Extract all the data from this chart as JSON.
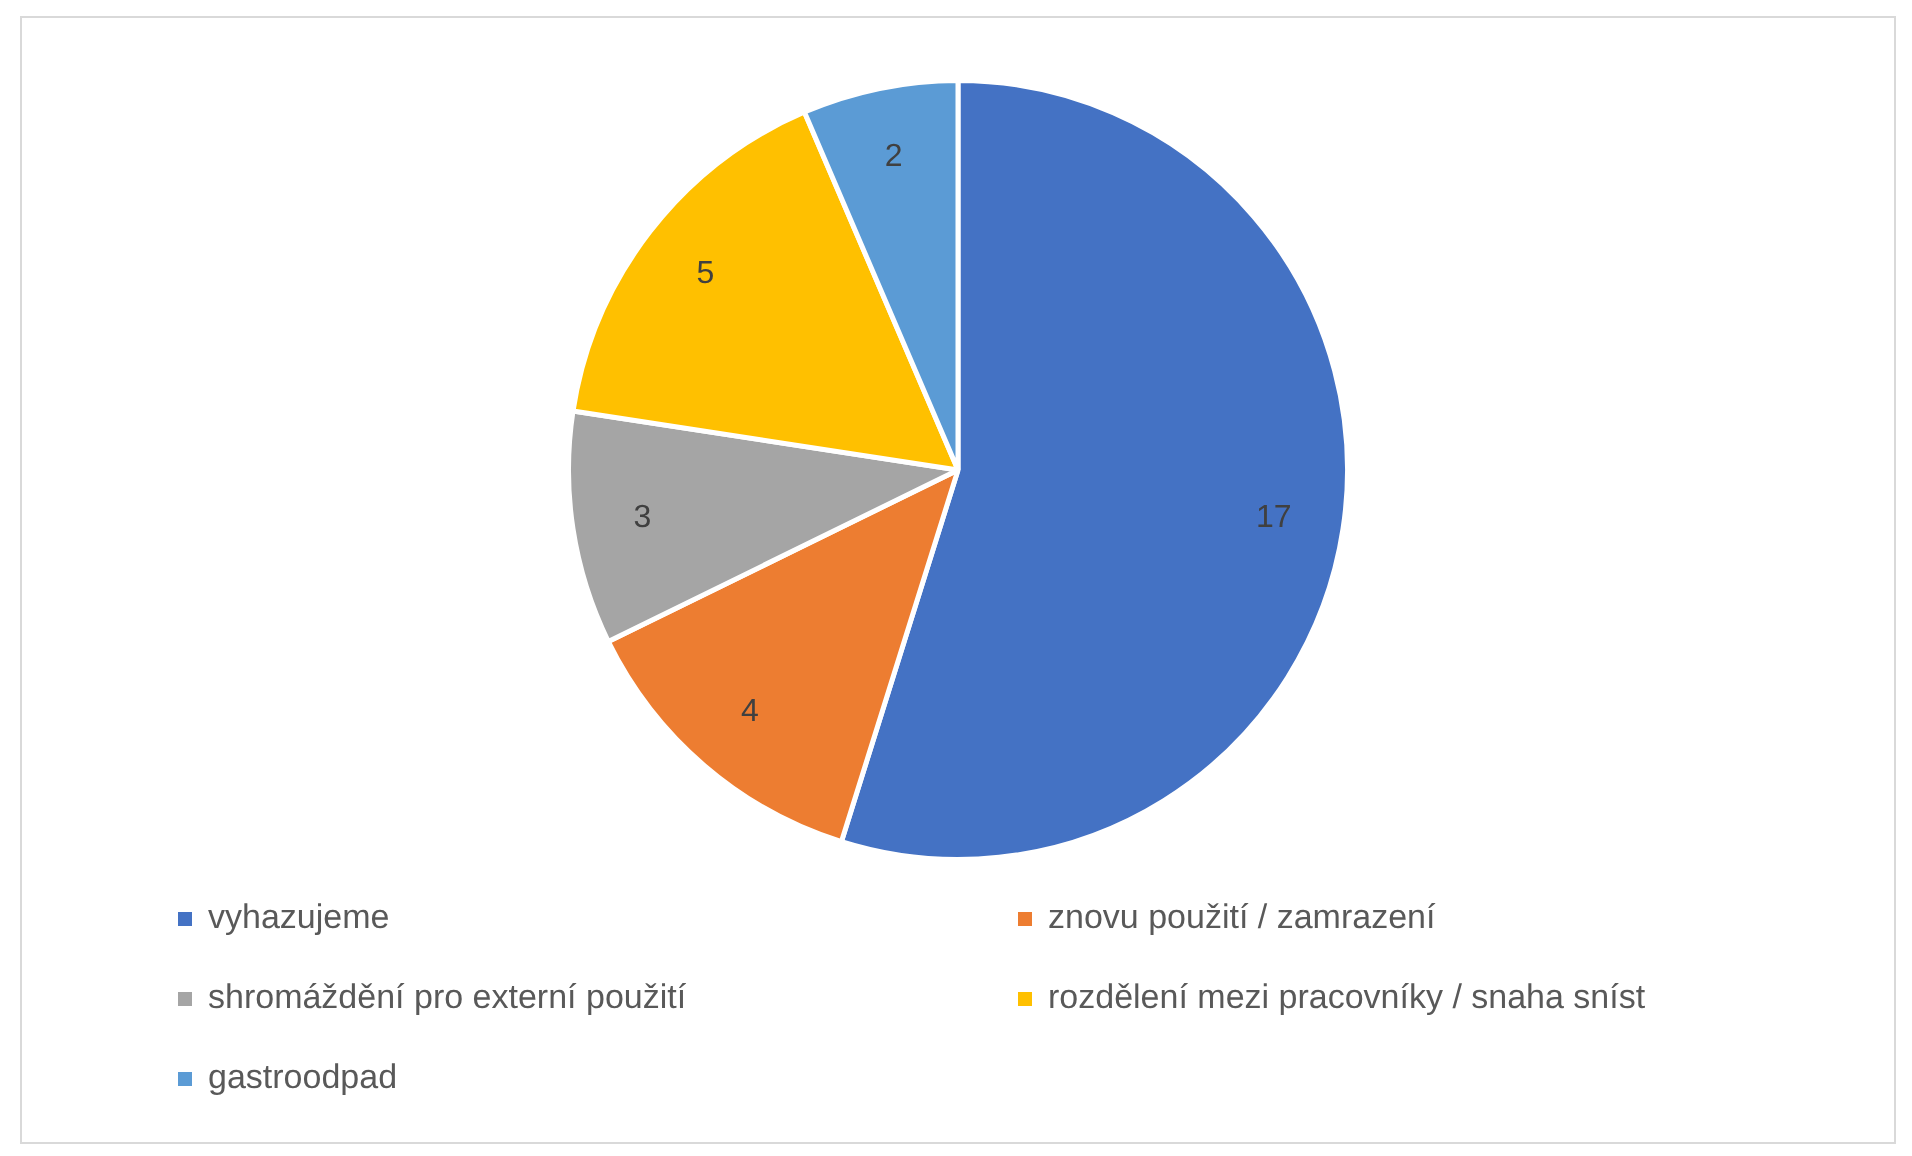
{
  "chart_data": {
    "type": "pie",
    "categories": [
      "vyhazujeme",
      "znovu použití / zamrazení",
      "shromáždění pro externí použití",
      "rozdělení mezi pracovníky / snaha sníst",
      "gastroodpad"
    ],
    "values": [
      17,
      4,
      3,
      5,
      2
    ],
    "colors": [
      "#4472c4",
      "#ed7d31",
      "#a5a5a5",
      "#ffc000",
      "#5b9bd5"
    ],
    "data_labels": true,
    "legend": "bottom"
  }
}
